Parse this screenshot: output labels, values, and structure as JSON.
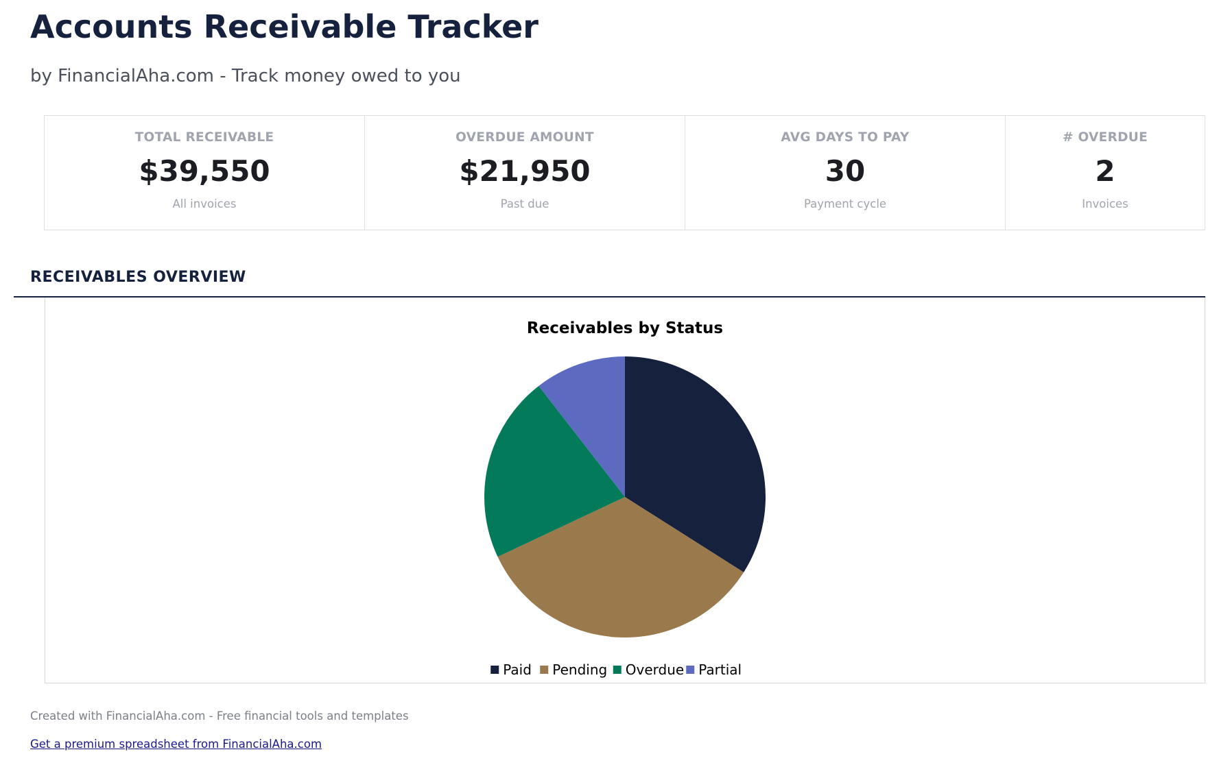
{
  "header": {
    "title": "Accounts Receivable Tracker",
    "subtitle": "by FinancialAha.com - Track money owed to you"
  },
  "cards": [
    {
      "label": "TOTAL RECEIVABLE",
      "value": "$39,550",
      "sub": "All invoices"
    },
    {
      "label": "OVERDUE AMOUNT",
      "value": "$21,950",
      "sub": "Past due"
    },
    {
      "label": "AVG DAYS TO PAY",
      "value": "30",
      "sub": "Payment cycle"
    },
    {
      "label": "# OVERDUE",
      "value": "2",
      "sub": "Invoices"
    }
  ],
  "section": {
    "title": "RECEIVABLES OVERVIEW"
  },
  "chart_data": {
    "type": "pie",
    "title": "Receivables by Status",
    "categories": [
      "Paid",
      "Pending",
      "Overdue",
      "Partial"
    ],
    "values": [
      34,
      34,
      21.5,
      10.5
    ],
    "colors": [
      "#15213d",
      "#9a7a4d",
      "#037a5a",
      "#5c6bc0"
    ],
    "legend": "bottom"
  },
  "footer": {
    "text": "Created with FinancialAha.com - Free financial tools and templates",
    "link": "Get a premium spreadsheet from FinancialAha.com"
  }
}
